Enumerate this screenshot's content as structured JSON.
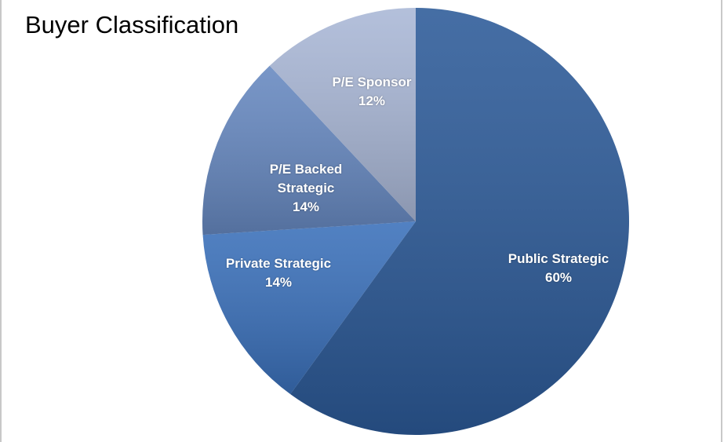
{
  "chart_data": {
    "type": "pie",
    "title": "Buyer Classification",
    "categories": [
      "Public Strategic",
      "Private Strategic",
      "P/E Backed Strategic",
      "P/E Sponsor"
    ],
    "values": [
      60,
      14,
      14,
      12
    ],
    "value_labels": [
      "60%",
      "14%",
      "14%",
      "12%"
    ],
    "colors": [
      "#2c5a98",
      "#3a70ba",
      "#6688c0",
      "#a9b7d6"
    ]
  }
}
